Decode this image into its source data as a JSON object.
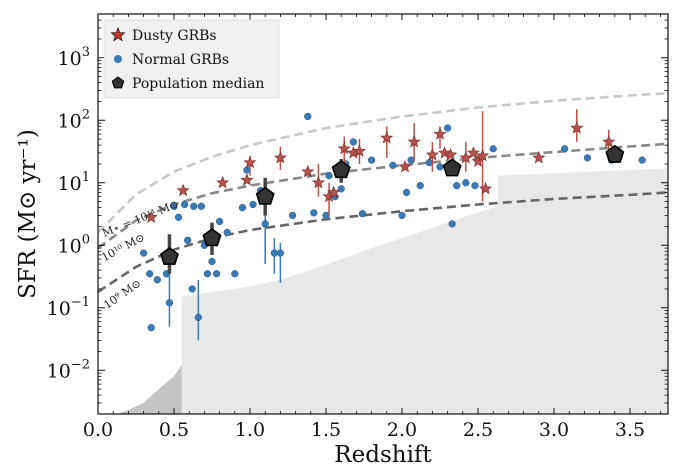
{
  "chart_data": {
    "type": "scatter",
    "xlabel": "Redshift",
    "ylabel": "SFR (M⊙ yr⁻¹)",
    "xlim": [
      0.0,
      3.75
    ],
    "ylim_log10": [
      -2.7,
      3.7
    ],
    "y_scale": "log",
    "x_ticks": [
      "0.0",
      "0.5",
      "1.0",
      "1.5",
      "2.0",
      "2.5",
      "3.0",
      "3.5"
    ],
    "y_ticks": [
      {
        "value": 0.01,
        "base": "10",
        "exp": "−2"
      },
      {
        "value": 0.1,
        "base": "10",
        "exp": "−1"
      },
      {
        "value": 1,
        "base": "10",
        "exp": "0"
      },
      {
        "value": 10,
        "base": "10",
        "exp": "1"
      },
      {
        "value": 100,
        "base": "10",
        "exp": "2"
      },
      {
        "value": 1000,
        "base": "10",
        "exp": "3"
      }
    ],
    "legend": {
      "placement": "top-left",
      "entries": [
        {
          "label": "Dusty GRBs",
          "marker": "star",
          "color": "#c0392b"
        },
        {
          "label": "Normal GRBs",
          "marker": "circle",
          "color": "#3a7ab7"
        },
        {
          "label": "Population median",
          "marker": "pentagon",
          "color": "#333333"
        }
      ]
    },
    "mass_lines": [
      {
        "label": "M⋆ = 10¹¹ M⊙",
        "color": "#c8c8c8",
        "x": [
          0.0,
          0.25,
          0.5,
          0.75,
          1.0,
          1.5,
          2.0,
          2.5,
          3.0,
          3.5,
          3.75
        ],
        "y": [
          1.6,
          6.5,
          15,
          26,
          40,
          75,
          115,
          160,
          205,
          250,
          270
        ]
      },
      {
        "label": "10¹⁰ M⊙",
        "color": "#888888",
        "x": [
          0.0,
          0.25,
          0.5,
          0.75,
          1.0,
          1.5,
          2.0,
          2.5,
          3.0,
          3.5,
          3.75
        ],
        "y": [
          0.9,
          2.5,
          4.5,
          6.8,
          9,
          14,
          19,
          25,
          31,
          38,
          42
        ]
      },
      {
        "label": "10⁹ M⊙",
        "color": "#666666",
        "x": [
          0.0,
          0.25,
          0.5,
          0.75,
          1.0,
          1.5,
          2.0,
          2.5,
          3.0,
          3.5,
          3.75
        ],
        "y": [
          0.18,
          0.45,
          0.85,
          1.3,
          1.75,
          2.6,
          3.5,
          4.5,
          5.5,
          6.4,
          7
        ]
      }
    ],
    "detection_limits": [
      {
        "x": [
          0.15,
          0.2,
          0.3,
          0.4,
          0.5,
          0.55,
          0.55,
          0.7,
          0.9,
          1.0,
          1.2,
          1.4,
          1.6,
          1.8,
          2.0,
          2.2,
          2.4,
          2.6,
          2.63,
          2.63,
          3.75
        ],
        "y": [
          0.0021,
          0.0023,
          0.003,
          0.005,
          0.008,
          0.012,
          0.15,
          0.17,
          0.2,
          0.22,
          0.28,
          0.4,
          0.6,
          0.9,
          1.3,
          1.9,
          2.8,
          4.0,
          4.3,
          13,
          17
        ],
        "color": "#e8e8e8"
      },
      {
        "x": [
          0.15,
          0.2,
          0.3,
          0.4,
          0.5,
          0.55
        ],
        "y": [
          0.0021,
          0.0023,
          0.003,
          0.005,
          0.008,
          0.012
        ],
        "color": "#c4c4c4"
      }
    ],
    "series": [
      {
        "name": "Dusty GRBs",
        "marker": "star",
        "color": "#b5524d",
        "points": [
          {
            "x": 0.35,
            "y": 2.8
          },
          {
            "x": 0.56,
            "y": 7.5
          },
          {
            "x": 0.82,
            "y": 10
          },
          {
            "x": 0.98,
            "y": 11
          },
          {
            "x": 1.0,
            "y": 21,
            "lo": 13,
            "hi": 27
          },
          {
            "x": 1.2,
            "y": 25,
            "lo": 16,
            "hi": 38
          },
          {
            "x": 1.38,
            "y": 15
          },
          {
            "x": 1.45,
            "y": 10,
            "lo": 6,
            "hi": 20
          },
          {
            "x": 1.52,
            "y": 6,
            "lo": 3,
            "hi": 10
          },
          {
            "x": 1.55,
            "y": 7
          },
          {
            "x": 1.62,
            "y": 35,
            "lo": 18,
            "hi": 55
          },
          {
            "x": 1.68,
            "y": 30
          },
          {
            "x": 1.72,
            "y": 32,
            "lo": 20,
            "hi": 50
          },
          {
            "x": 1.9,
            "y": 52,
            "lo": 25,
            "hi": 80
          },
          {
            "x": 2.02,
            "y": 18
          },
          {
            "x": 2.08,
            "y": 45,
            "lo": 22,
            "hi": 90
          },
          {
            "x": 2.2,
            "y": 28,
            "lo": 15,
            "hi": 45
          },
          {
            "x": 2.25,
            "y": 60,
            "lo": 35,
            "hi": 80
          },
          {
            "x": 2.28,
            "y": 30
          },
          {
            "x": 2.32,
            "y": 28
          },
          {
            "x": 2.42,
            "y": 25,
            "lo": 15,
            "hi": 45
          },
          {
            "x": 2.47,
            "y": 30
          },
          {
            "x": 2.5,
            "y": 22
          },
          {
            "x": 2.53,
            "y": 27,
            "lo": 5,
            "hi": 140
          },
          {
            "x": 2.55,
            "y": 8
          },
          {
            "x": 2.9,
            "y": 25
          },
          {
            "x": 3.15,
            "y": 75,
            "lo": 45,
            "hi": 150
          },
          {
            "x": 3.36,
            "y": 45,
            "lo": 25,
            "hi": 70
          }
        ]
      },
      {
        "name": "Normal GRBs",
        "marker": "circle",
        "color": "#3a7ab7",
        "points": [
          {
            "x": 0.3,
            "y": 0.75
          },
          {
            "x": 0.34,
            "y": 0.35
          },
          {
            "x": 0.35,
            "y": 0.048
          },
          {
            "x": 0.39,
            "y": 0.28
          },
          {
            "x": 0.45,
            "y": 0.35
          },
          {
            "x": 0.47,
            "y": 0.12,
            "lo": 0.05,
            "hi": 0.4
          },
          {
            "x": 0.5,
            "y": 4.2
          },
          {
            "x": 0.53,
            "y": 2.8
          },
          {
            "x": 0.57,
            "y": 4.5
          },
          {
            "x": 0.59,
            "y": 1.2
          },
          {
            "x": 0.62,
            "y": 0.2
          },
          {
            "x": 0.63,
            "y": 4.2
          },
          {
            "x": 0.66,
            "y": 0.07,
            "lo": 0.03,
            "hi": 0.28
          },
          {
            "x": 0.68,
            "y": 4.2
          },
          {
            "x": 0.7,
            "y": 1.0
          },
          {
            "x": 0.72,
            "y": 0.35
          },
          {
            "x": 0.75,
            "y": 0.55
          },
          {
            "x": 0.78,
            "y": 0.35
          },
          {
            "x": 0.8,
            "y": 2.4
          },
          {
            "x": 0.85,
            "y": 1.6
          },
          {
            "x": 0.9,
            "y": 0.35
          },
          {
            "x": 0.95,
            "y": 4.0
          },
          {
            "x": 0.98,
            "y": 16
          },
          {
            "x": 1.02,
            "y": 4.5
          },
          {
            "x": 1.07,
            "y": 7.5
          },
          {
            "x": 1.1,
            "y": 2.2,
            "lo": 0.5,
            "hi": 5
          },
          {
            "x": 1.16,
            "y": 0.75,
            "lo": 0.35,
            "hi": 1.3
          },
          {
            "x": 1.2,
            "y": 0.75,
            "lo": 0.25,
            "hi": 1.1
          },
          {
            "x": 1.28,
            "y": 3.0
          },
          {
            "x": 1.38,
            "y": 115
          },
          {
            "x": 1.42,
            "y": 3.3
          },
          {
            "x": 1.5,
            "y": 3.0
          },
          {
            "x": 1.52,
            "y": 13
          },
          {
            "x": 1.56,
            "y": 6.0
          },
          {
            "x": 1.6,
            "y": 8.0
          },
          {
            "x": 1.63,
            "y": 20
          },
          {
            "x": 1.68,
            "y": 45
          },
          {
            "x": 1.74,
            "y": 3.2
          },
          {
            "x": 1.8,
            "y": 23
          },
          {
            "x": 1.94,
            "y": 19
          },
          {
            "x": 2.0,
            "y": 3.0
          },
          {
            "x": 2.03,
            "y": 7.0
          },
          {
            "x": 2.06,
            "y": 23
          },
          {
            "x": 2.12,
            "y": 9.0
          },
          {
            "x": 2.18,
            "y": 21
          },
          {
            "x": 2.25,
            "y": 18
          },
          {
            "x": 2.3,
            "y": 75
          },
          {
            "x": 2.33,
            "y": 2.2
          },
          {
            "x": 2.36,
            "y": 9.0
          },
          {
            "x": 2.42,
            "y": 10
          },
          {
            "x": 2.48,
            "y": 9.0
          },
          {
            "x": 2.6,
            "y": 35
          },
          {
            "x": 3.07,
            "y": 35
          },
          {
            "x": 3.22,
            "y": 25
          },
          {
            "x": 3.38,
            "y": 23
          },
          {
            "x": 3.43,
            "y": 28
          },
          {
            "x": 3.58,
            "y": 23
          }
        ]
      },
      {
        "name": "Population median",
        "marker": "pentagon",
        "color": "#333333",
        "points": [
          {
            "x": 0.47,
            "y": 0.65,
            "lo": 0.35,
            "hi": 1.5
          },
          {
            "x": 0.75,
            "y": 1.3,
            "lo": 0.7,
            "hi": 2.3
          },
          {
            "x": 1.1,
            "y": 6,
            "lo": 3,
            "hi": 12
          },
          {
            "x": 1.6,
            "y": 16,
            "lo": 10,
            "hi": 24
          },
          {
            "x": 2.33,
            "y": 17,
            "lo": 13,
            "hi": 22
          },
          {
            "x": 3.4,
            "y": 28,
            "lo": 22,
            "hi": 37
          }
        ]
      }
    ]
  }
}
